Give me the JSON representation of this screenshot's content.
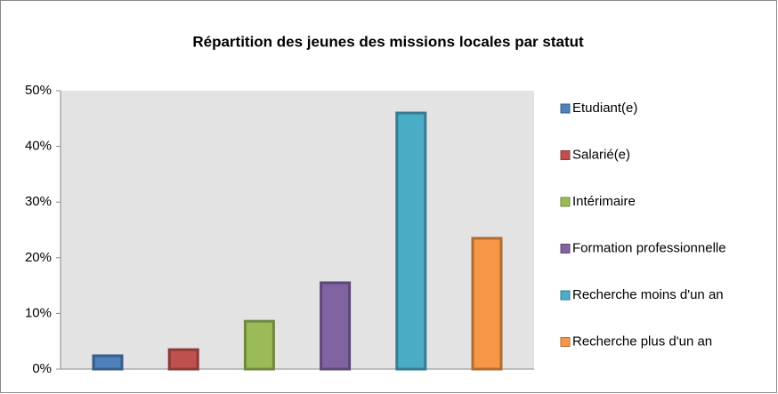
{
  "chart_data": {
    "type": "bar",
    "title": "Répartition des jeunes des missions locales par statut",
    "categories": [
      null
    ],
    "series": [
      {
        "name": "Etudiant(e)",
        "color": "#4f81bd",
        "values": [
          2.4
        ]
      },
      {
        "name": "Salarié(e)",
        "color": "#c0504d",
        "values": [
          3.5
        ]
      },
      {
        "name": "Intérimaire",
        "color": "#9bbb59",
        "values": [
          8.6
        ]
      },
      {
        "name": "Formation professionnelle",
        "color": "#8064a2",
        "values": [
          15.5
        ]
      },
      {
        "name": "Recherche moins d'un an",
        "color": "#4bacc6",
        "values": [
          46
        ]
      },
      {
        "name": "Recherche plus d'un an",
        "color": "#f79646",
        "values": [
          23.5
        ]
      }
    ],
    "ylim": [
      0,
      50
    ],
    "yticks": [
      {
        "value": 0,
        "label": "0%"
      },
      {
        "value": 10,
        "label": "10%"
      },
      {
        "value": 20,
        "label": "20%"
      },
      {
        "value": 30,
        "label": "30%"
      },
      {
        "value": 40,
        "label": "40%"
      },
      {
        "value": 50,
        "label": "50%"
      }
    ],
    "grid": false,
    "legend": "right"
  }
}
